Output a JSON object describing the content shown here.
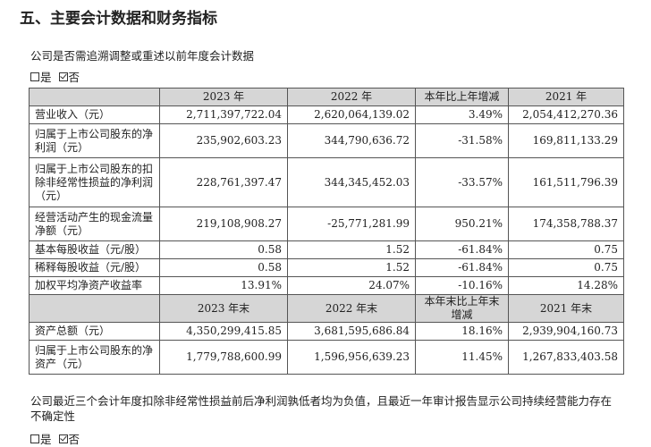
{
  "heading": "五、主要会计数据和财务指标",
  "restate_question": "公司是否需追溯调整或重述以前年度会计数据",
  "restate_options": {
    "yes": "是",
    "no": "否",
    "checked": "no"
  },
  "table": {
    "header1": [
      "",
      "2023 年",
      "2022 年",
      "本年比上年增减",
      "2021 年"
    ],
    "rows1": [
      [
        "营业收入（元）",
        "2,711,397,722.04",
        "2,620,064,139.02",
        "3.49%",
        "2,054,412,270.36"
      ],
      [
        "归属于上市公司股东的净利润（元）",
        "235,902,603.23",
        "344,790,636.72",
        "-31.58%",
        "169,811,133.29"
      ],
      [
        "归属于上市公司股东的扣除非经常性损益的净利润（元）",
        "228,761,397.47",
        "344,345,452.03",
        "-33.57%",
        "161,511,796.39"
      ],
      [
        "经营活动产生的现金流量净额（元）",
        "219,108,908.27",
        "-25,771,281.99",
        "950.21%",
        "174,358,788.37"
      ],
      [
        "基本每股收益（元/股）",
        "0.58",
        "1.52",
        "-61.84%",
        "0.75"
      ],
      [
        "稀释每股收益（元/股）",
        "0.58",
        "1.52",
        "-61.84%",
        "0.75"
      ],
      [
        "加权平均净资产收益率",
        "13.91%",
        "24.07%",
        "-10.16%",
        "14.28%"
      ]
    ],
    "header2": [
      "",
      "2023 年末",
      "2022 年末",
      "本年末比上年末增减",
      "2021 年末"
    ],
    "rows2": [
      [
        "资产总额（元）",
        "4,350,299,415.85",
        "3,681,595,686.84",
        "18.16%",
        "2,939,904,160.73"
      ],
      [
        "归属于上市公司股东的净资产（元）",
        "1,779,788,600.99",
        "1,596,956,639.23",
        "11.45%",
        "1,267,833,403.58"
      ]
    ]
  },
  "going_concern_question": "公司最近三个会计年度扣除非经常性损益前后净利润孰低者均为负值，且最近一年审计报告显示公司持续经营能力存在不确定性",
  "going_concern_options": {
    "yes": "是",
    "no": "否",
    "checked": "no"
  }
}
